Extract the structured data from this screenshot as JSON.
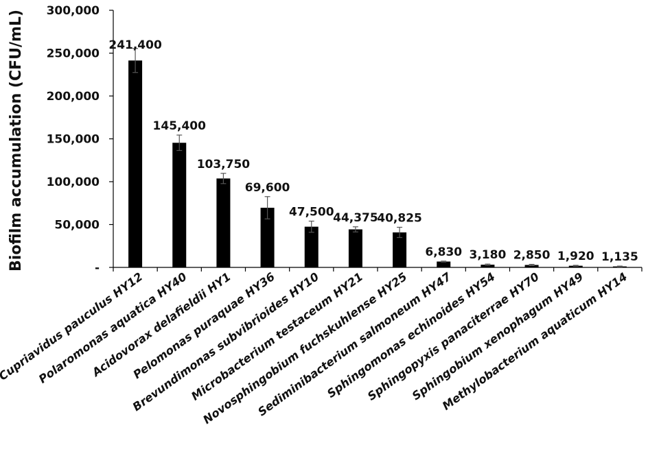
{
  "chart_data": {
    "type": "bar",
    "title": "",
    "xlabel": "",
    "ylabel": "Biofilm accumulation (CFU/mL)",
    "ylim": [
      0,
      300000
    ],
    "yticks": [
      0,
      50000,
      100000,
      150000,
      200000,
      250000,
      300000
    ],
    "ytick_labels": [
      "-",
      "50,000",
      "100,000",
      "150,000",
      "200,000",
      "250,000",
      "300,000"
    ],
    "grid": false,
    "legend": "none",
    "bar_color": "#000000",
    "categories": [
      "Cupriavidus pauculus HY12",
      "Polaromonas aquatica HY40",
      "Acidovorax delafieldii HY1",
      "Pelomonas puraquae HY36",
      "Brevundimonas subvibrioides HY10",
      "Microbacterium testaceum HY21",
      "Novosphingobium fuchskuhlense HY25",
      "Sediminibacterium salmoneum HY47",
      "Sphingomonas echinoides HY54",
      "Sphingopyxis panaciterrae HY70",
      "Sphingobium xenophagum HY49",
      "Methylobacterium aquaticum HY14"
    ],
    "values": [
      241400,
      145400,
      103750,
      69600,
      47500,
      44375,
      40825,
      6830,
      3180,
      2850,
      1920,
      1135
    ],
    "data_labels": [
      "241,400",
      "145,400",
      "103,750",
      "69,600",
      "47,500",
      "44,375",
      "40,825",
      "6,830",
      "3,180",
      "2,850",
      "1,920",
      "1,135"
    ],
    "errors": [
      14000,
      9000,
      6000,
      13000,
      6500,
      3000,
      6000,
      500,
      700,
      700,
      500,
      400
    ]
  }
}
